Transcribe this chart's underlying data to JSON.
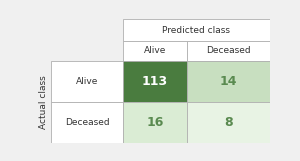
{
  "matrix": [
    [
      113,
      14
    ],
    [
      16,
      8
    ]
  ],
  "row_labels": [
    "Alive",
    "Deceased"
  ],
  "col_labels": [
    "Alive",
    "Deceased"
  ],
  "x_header": "Predicted class",
  "y_header": "Actual class",
  "cell_colors": [
    [
      "#4a7c3f",
      "#c8dfc0"
    ],
    [
      "#daecd4",
      "#e8f3e4"
    ]
  ],
  "text_colors_data": [
    [
      "#ffffff",
      "#5a8a50"
    ],
    [
      "#5a8a50",
      "#5a8a50"
    ]
  ],
  "border_color": "#b0b0b0",
  "bg_color": "#f0f0f0",
  "fontsize_cell": 9,
  "fontsize_label": 6.5,
  "fontsize_header": 6.5,
  "fontsize_axis_label": 6.5
}
